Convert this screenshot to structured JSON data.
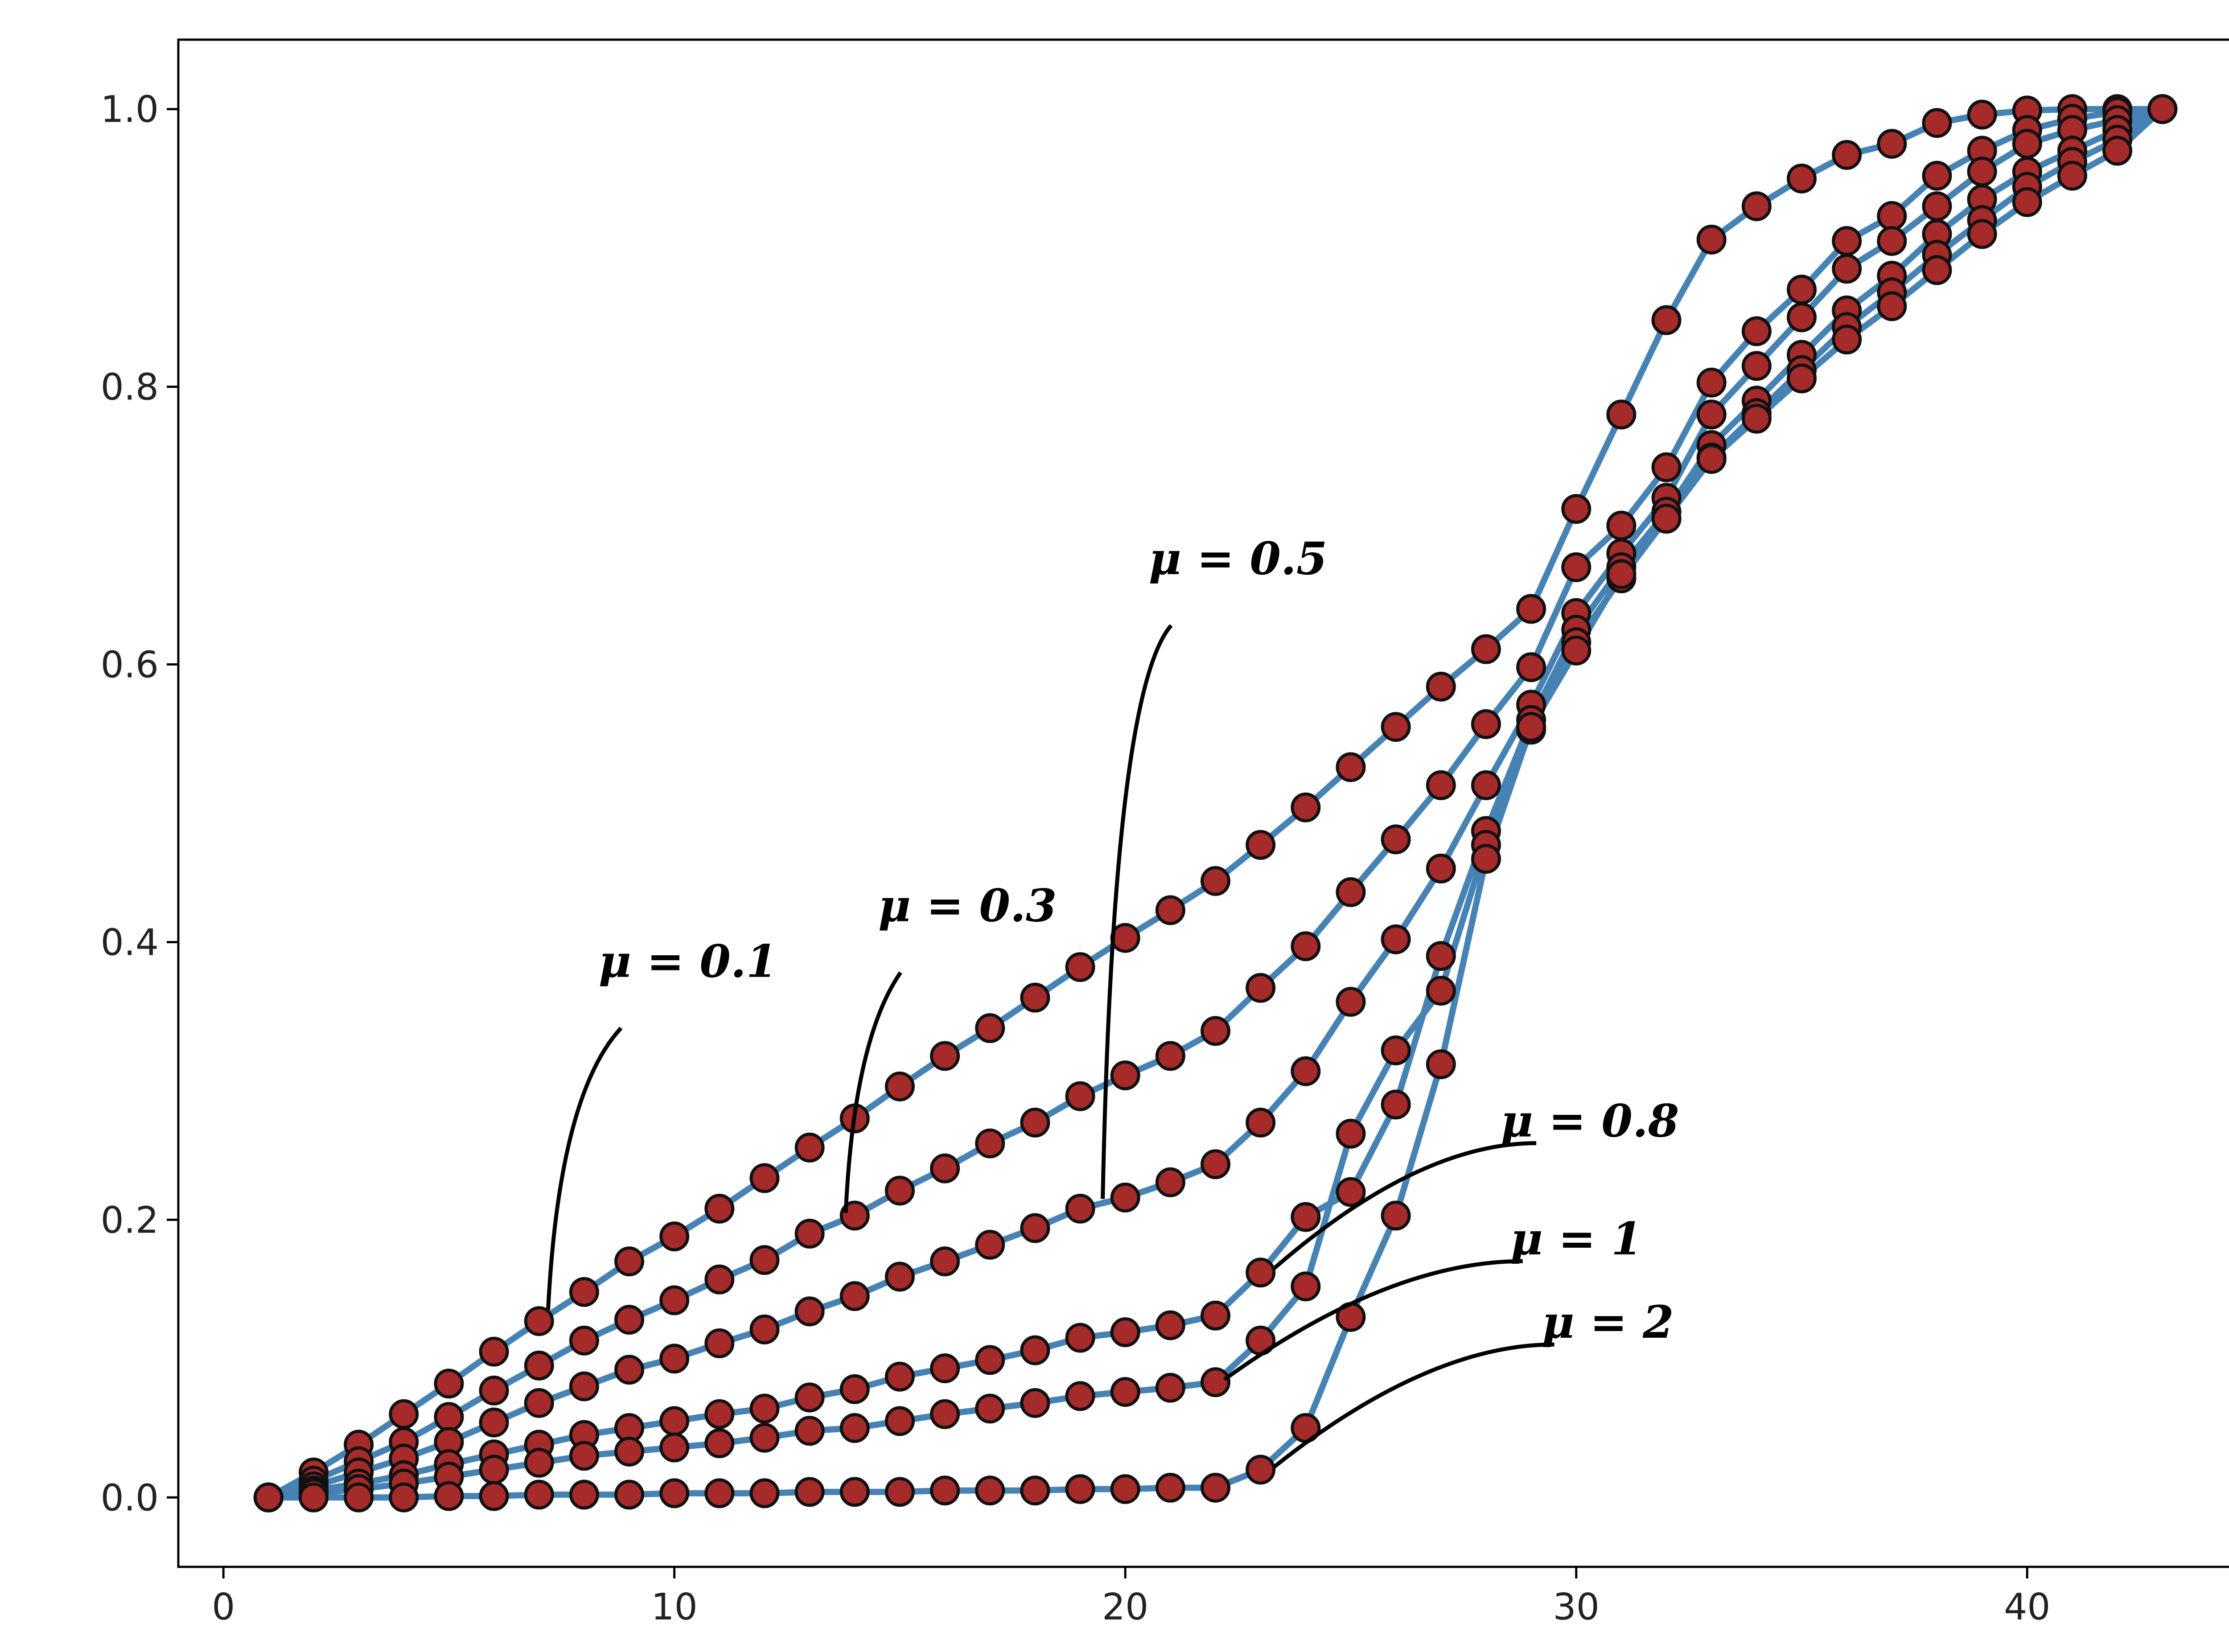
{
  "chart_data": {
    "type": "line",
    "title": "",
    "xlabel": "",
    "ylabel": "",
    "xlim": [
      -1,
      45
    ],
    "ylim": [
      -0.05,
      1.05
    ],
    "xticks": [
      0,
      10,
      20,
      30,
      40
    ],
    "yticks": [
      0.0,
      0.2,
      0.4,
      0.6,
      0.8,
      1.0
    ],
    "xtick_labels": [
      "0",
      "10",
      "20",
      "30",
      "40"
    ],
    "ytick_labels": [
      "0.0",
      "0.2",
      "0.4",
      "0.6",
      "0.8",
      "1.0"
    ],
    "grid": false,
    "legend": "none",
    "line_color": "#4682b4",
    "marker_face_color": "#a52a2a",
    "marker_edge_color": "#111111",
    "x": [
      1,
      2,
      3,
      4,
      5,
      6,
      7,
      8,
      9,
      10,
      11,
      12,
      13,
      14,
      15,
      16,
      17,
      18,
      19,
      20,
      21,
      22,
      23,
      24,
      25,
      26,
      27,
      28,
      29,
      30,
      31,
      32,
      33,
      34,
      35,
      36,
      37,
      38,
      39,
      40,
      41,
      42,
      43
    ],
    "series": [
      {
        "values": [
          0.0,
          0.018,
          0.038,
          0.06,
          0.082,
          0.105,
          0.127,
          0.148,
          0.17,
          0.188,
          0.208,
          0.23,
          0.252,
          0.273,
          0.296,
          0.318,
          0.338,
          0.36,
          0.382,
          0.403,
          0.423,
          0.444,
          0.47,
          0.497,
          0.526,
          0.555,
          0.584,
          0.611,
          0.64,
          0.712,
          0.78,
          0.848,
          0.906,
          0.93,
          0.95,
          0.967,
          0.975,
          0.99,
          0.996,
          0.999,
          1.0,
          1.0,
          1.0
        ]
      },
      {
        "values": [
          0.0,
          0.012,
          0.026,
          0.04,
          0.058,
          0.077,
          0.095,
          0.113,
          0.128,
          0.142,
          0.157,
          0.171,
          0.19,
          0.203,
          0.221,
          0.237,
          0.255,
          0.27,
          0.289,
          0.304,
          0.318,
          0.336,
          0.367,
          0.397,
          0.436,
          0.474,
          0.513,
          0.557,
          0.598,
          0.67,
          0.7,
          0.742,
          0.803,
          0.84,
          0.87,
          0.905,
          0.923,
          0.952,
          0.97,
          0.985,
          0.993,
          0.998,
          1.0
        ]
      },
      {
        "values": [
          0.0,
          0.008,
          0.018,
          0.028,
          0.04,
          0.054,
          0.068,
          0.08,
          0.092,
          0.1,
          0.111,
          0.121,
          0.134,
          0.145,
          0.159,
          0.17,
          0.182,
          0.194,
          0.208,
          0.216,
          0.227,
          0.24,
          0.27,
          0.307,
          0.357,
          0.402,
          0.453,
          0.513,
          0.571,
          0.637,
          0.68,
          0.72,
          0.78,
          0.815,
          0.85,
          0.885,
          0.905,
          0.93,
          0.955,
          0.975,
          0.985,
          0.992,
          1.0
        ]
      },
      {
        "values": [
          0.0,
          0.005,
          0.01,
          0.016,
          0.024,
          0.031,
          0.038,
          0.045,
          0.05,
          0.055,
          0.06,
          0.064,
          0.072,
          0.078,
          0.087,
          0.093,
          0.099,
          0.106,
          0.115,
          0.119,
          0.124,
          0.131,
          0.162,
          0.202,
          0.22,
          0.283,
          0.39,
          0.48,
          0.56,
          0.625,
          0.67,
          0.71,
          0.758,
          0.79,
          0.823,
          0.855,
          0.88,
          0.91,
          0.935,
          0.955,
          0.97,
          0.985,
          1.0
        ]
      },
      {
        "values": [
          0.0,
          0.003,
          0.006,
          0.01,
          0.015,
          0.02,
          0.025,
          0.03,
          0.033,
          0.036,
          0.039,
          0.043,
          0.048,
          0.05,
          0.055,
          0.06,
          0.064,
          0.068,
          0.073,
          0.076,
          0.079,
          0.083,
          0.113,
          0.152,
          0.262,
          0.322,
          0.365,
          0.47,
          0.553,
          0.616,
          0.662,
          0.705,
          0.749,
          0.781,
          0.812,
          0.843,
          0.868,
          0.895,
          0.92,
          0.944,
          0.962,
          0.978,
          1.0
        ]
      },
      {
        "values": [
          0.0,
          0.0,
          0.0,
          0.0,
          0.001,
          0.001,
          0.002,
          0.002,
          0.002,
          0.003,
          0.003,
          0.003,
          0.004,
          0.004,
          0.004,
          0.005,
          0.005,
          0.005,
          0.006,
          0.006,
          0.007,
          0.007,
          0.02,
          0.05,
          0.13,
          0.203,
          0.312,
          0.46,
          0.555,
          0.61,
          0.665,
          0.705,
          0.748,
          0.777,
          0.806,
          0.834,
          0.858,
          0.884,
          0.91,
          0.933,
          0.952,
          0.97,
          1.0
        ]
      }
    ],
    "annotations": [
      {
        "text": "μ = 0.1",
        "x": 7.2,
        "y": 0.135,
        "text_x": 10.3,
        "text_y": 0.375
      },
      {
        "text": "μ = 0.3",
        "x": 13.8,
        "y": 0.205,
        "text_x": 16.5,
        "text_y": 0.415
      },
      {
        "text": "μ = 0.5",
        "x": 19.5,
        "y": 0.215,
        "text_x": 22.5,
        "text_y": 0.665
      },
      {
        "text": "μ = 0.8",
        "x": 23.3,
        "y": 0.165,
        "text_x": 30.3,
        "text_y": 0.26
      },
      {
        "text": "μ = 1",
        "x": 22.2,
        "y": 0.085,
        "text_x": 30.0,
        "text_y": 0.175
      },
      {
        "text": "μ = 2",
        "x": 23.3,
        "y": 0.022,
        "text_x": 30.7,
        "text_y": 0.115
      }
    ]
  }
}
